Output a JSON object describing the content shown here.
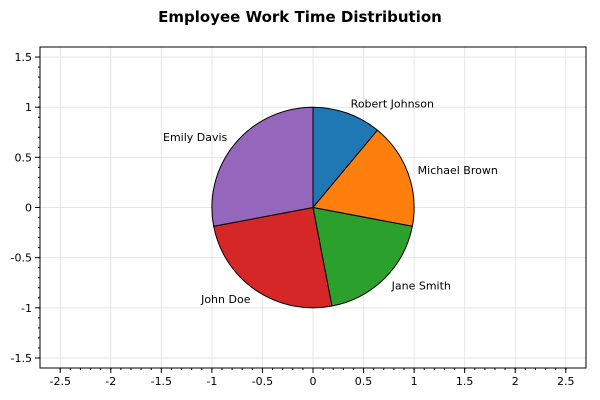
{
  "chart_data": {
    "type": "pie",
    "title": "Employee Work Time Distribution",
    "xlabel": "",
    "ylabel": "",
    "xlim": [
      -2.7,
      2.7
    ],
    "ylim": [
      -1.6,
      1.6
    ],
    "x_ticks": [
      "-2.5",
      "-2",
      "-1.5",
      "-1",
      "-0.5",
      "0",
      "0.5",
      "1",
      "1.5",
      "2",
      "2.5"
    ],
    "y_ticks": [
      "1.5",
      "1",
      "0.5",
      "0",
      "-0.5",
      "-1",
      "-1.5"
    ],
    "grid": true,
    "slices": [
      {
        "label": "Robert Johnson",
        "value": 11,
        "color": "#1f77b4"
      },
      {
        "label": "Michael Brown",
        "value": 17,
        "color": "#ff7f0e"
      },
      {
        "label": "Jane Smith",
        "value": 19,
        "color": "#2ca02c"
      },
      {
        "label": "John Doe",
        "value": 25,
        "color": "#d62728"
      },
      {
        "label": "Emily Davis",
        "value": 28,
        "color": "#9467bd"
      }
    ]
  }
}
